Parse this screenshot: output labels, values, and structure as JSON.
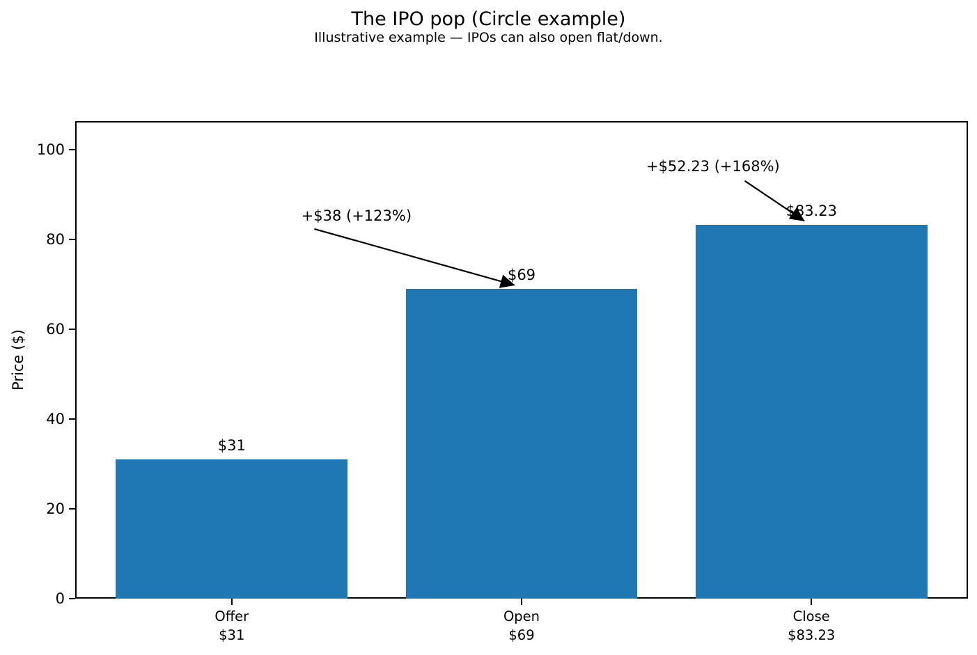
{
  "header": {
    "title": "The IPO pop (Circle example)",
    "subtitle": "Illustrative example — IPOs can also open flat/down."
  },
  "chart_data": {
    "type": "bar",
    "title": "The IPO pop (Circle example)",
    "subtitle": "Illustrative example — IPOs can also open flat/down.",
    "categories": [
      "Offer",
      "Open",
      "Close"
    ],
    "values": [
      31,
      69,
      83.23
    ],
    "bar_value_labels": [
      "$31",
      "$69",
      "$83.23"
    ],
    "x_tick_labels": [
      "Offer\n$31",
      "Open\n$69",
      "Close\n$83.23"
    ],
    "xlabel": "",
    "ylabel": "Price ($)",
    "yticks": [
      0,
      20,
      40,
      60,
      80,
      100
    ],
    "ylim": [
      0,
      106.3
    ],
    "xlim": [
      -0.54,
      2.54
    ],
    "bar_width": 0.8,
    "bar_color": "#1f77b4",
    "grid": false,
    "legend": null,
    "annotations": [
      {
        "text": "+$38 (+123%)",
        "text_xy": [
          0.24,
          85.2
        ],
        "arrow_from": [
          0.285,
          82.3
        ],
        "arrow_to": [
          0.975,
          69.8
        ]
      },
      {
        "text": "+$52.23 (+168%)",
        "text_xy": [
          1.43,
          96.2
        ],
        "arrow_from": [
          1.77,
          93.0
        ],
        "arrow_to": [
          1.975,
          84.1
        ]
      }
    ]
  }
}
